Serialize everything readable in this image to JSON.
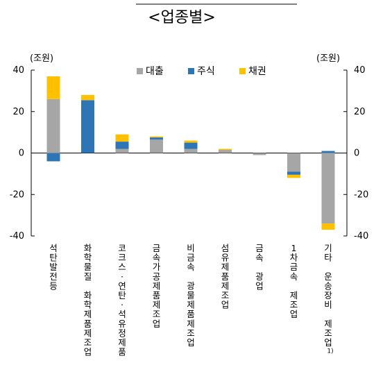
{
  "chart_data": {
    "type": "bar",
    "stacked": true,
    "title": "<업종별>",
    "unit_left": "(조원)",
    "unit_right": "(조원)",
    "ylim": [
      -40,
      40
    ],
    "yticks": [
      40,
      20,
      0,
      -20,
      -40
    ],
    "grid": false,
    "legend_position": "top-right",
    "categories": [
      "석탄발전등",
      "화학물질 화학제품제조업",
      "코크스·연탄·석유정제품",
      "금속가공제품제조업",
      "비금속 광물제품제조업",
      "섬유제품제조업",
      "금속 광업",
      "1차금속 제조업",
      "기타 운송장비 제조업"
    ],
    "category_footnotes": [
      "",
      "",
      "",
      "",
      "",
      "",
      "",
      "",
      "1)"
    ],
    "series": [
      {
        "name": "대출",
        "color": "#a6a6a6",
        "values": [
          26,
          0,
          2,
          6.5,
          2,
          1.5,
          -1,
          -9,
          -34
        ]
      },
      {
        "name": "주식",
        "color": "#2e75b6",
        "values": [
          -4,
          25.5,
          3.5,
          1,
          3,
          0,
          0,
          -1.5,
          1
        ]
      },
      {
        "name": "채권",
        "color": "#ffc000",
        "values": [
          11,
          2.5,
          3.5,
          0.5,
          1,
          0.5,
          0,
          -1.5,
          -3
        ]
      }
    ]
  }
}
